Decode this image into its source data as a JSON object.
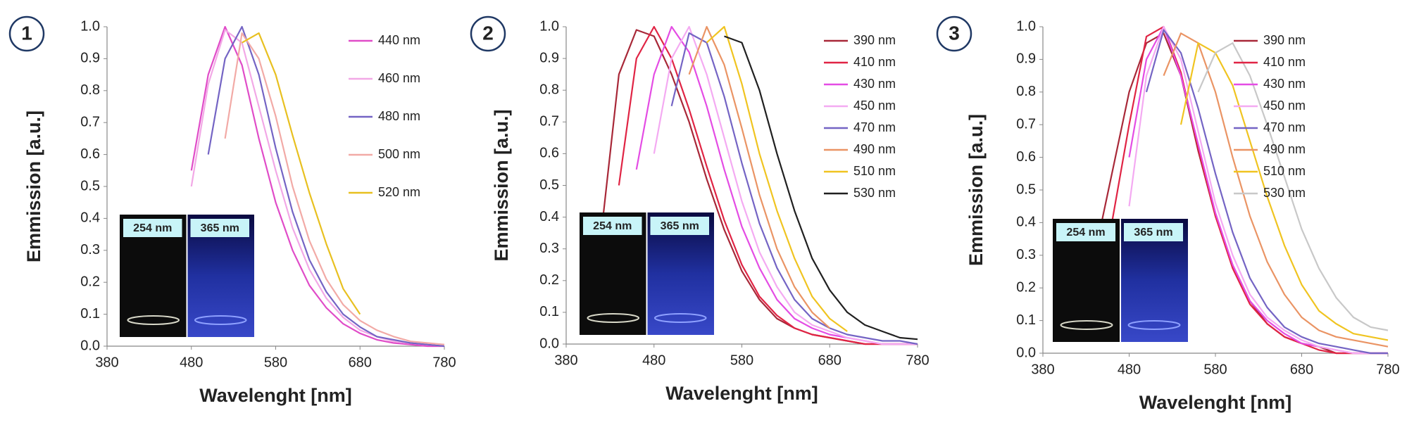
{
  "chart_data": [
    {
      "type": "line",
      "label": "1",
      "xlabel": "Wavelenght [nm]",
      "ylabel": "Emmission [a.u.]",
      "inset_labels": [
        "254 nm",
        "365 nm"
      ],
      "legend": "right",
      "grid": false,
      "xlim": [
        380,
        780
      ],
      "xticks": [
        380,
        480,
        580,
        680,
        780
      ],
      "ylim": [
        0,
        1
      ],
      "yticks": [
        {
          "value": 0,
          "label": "0.0"
        },
        0.1,
        0.2,
        0.3,
        0.4,
        0.5,
        0.6,
        0.7,
        0.8,
        0.9,
        {
          "value": 1,
          "label": "1.0"
        }
      ],
      "x": [
        380,
        400,
        420,
        440,
        460,
        480,
        500,
        520,
        540,
        560,
        580,
        600,
        620,
        640,
        660,
        680,
        700,
        720,
        740,
        760,
        780
      ],
      "series": [
        {
          "name": "440 nm",
          "color": "#e04cc8",
          "values": [
            null,
            null,
            null,
            null,
            null,
            0.55,
            0.85,
            1.0,
            0.88,
            0.65,
            0.45,
            0.3,
            0.19,
            0.12,
            0.07,
            0.04,
            0.02,
            0.01,
            0.005,
            0,
            0
          ]
        },
        {
          "name": "460 nm",
          "color": "#f2a8e6",
          "values": [
            null,
            null,
            null,
            null,
            null,
            0.5,
            0.82,
            0.99,
            0.95,
            0.75,
            0.55,
            0.37,
            0.24,
            0.15,
            0.09,
            0.05,
            0.03,
            0.015,
            0.01,
            0.005,
            0
          ]
        },
        {
          "name": "480 nm",
          "color": "#7464c4",
          "values": [
            null,
            null,
            null,
            null,
            null,
            null,
            0.6,
            0.9,
            1.0,
            0.85,
            0.62,
            0.42,
            0.27,
            0.17,
            0.1,
            0.06,
            0.03,
            0.02,
            0.01,
            0.005,
            0
          ]
        },
        {
          "name": "500 nm",
          "color": "#f2aaa6",
          "values": [
            null,
            null,
            null,
            null,
            null,
            null,
            null,
            0.65,
            0.98,
            0.9,
            0.72,
            0.5,
            0.33,
            0.21,
            0.13,
            0.08,
            0.05,
            0.03,
            0.015,
            0.01,
            0.005
          ]
        },
        {
          "name": "520 nm",
          "color": "#e8c020",
          "values": [
            null,
            null,
            null,
            null,
            null,
            null,
            null,
            null,
            0.95,
            0.98,
            0.85,
            0.66,
            0.48,
            0.32,
            0.18,
            0.1,
            null,
            null,
            null,
            null,
            null
          ]
        }
      ]
    },
    {
      "type": "line",
      "label": "2",
      "xlabel": "Wavelenght [nm]",
      "ylabel": "Emmission [a.u.]",
      "inset_labels": [
        "254 nm",
        "365 nm"
      ],
      "legend": "right",
      "grid": false,
      "xlim": [
        380,
        780
      ],
      "xticks": [
        380,
        480,
        580,
        680,
        780
      ],
      "ylim": [
        0,
        1
      ],
      "yticks": [
        {
          "value": 0,
          "label": "0.0"
        },
        0.1,
        0.2,
        0.3,
        0.4,
        0.5,
        0.6,
        0.7,
        0.8,
        0.9,
        {
          "value": 1,
          "label": "1.0"
        }
      ],
      "x": [
        380,
        400,
        420,
        440,
        460,
        480,
        500,
        520,
        540,
        560,
        580,
        600,
        620,
        640,
        660,
        680,
        700,
        720,
        740,
        760,
        780
      ],
      "series": [
        {
          "name": "390 nm",
          "color": "#a82838",
          "values": [
            null,
            null,
            0.35,
            0.85,
            0.99,
            0.97,
            0.85,
            0.7,
            0.52,
            0.36,
            0.23,
            0.14,
            0.08,
            0.05,
            0.03,
            0.02,
            0.01,
            0,
            0,
            0,
            0
          ]
        },
        {
          "name": "410 nm",
          "color": "#e02444",
          "values": [
            null,
            null,
            null,
            0.5,
            0.9,
            1.0,
            0.9,
            0.74,
            0.56,
            0.39,
            0.25,
            0.15,
            0.09,
            0.05,
            0.03,
            0.02,
            0.01,
            0,
            0,
            0,
            0
          ]
        },
        {
          "name": "430 nm",
          "color": "#e44ce4",
          "values": [
            null,
            null,
            null,
            null,
            0.55,
            0.85,
            1.0,
            0.92,
            0.75,
            0.55,
            0.37,
            0.24,
            0.14,
            0.08,
            0.05,
            0.03,
            0.02,
            0.01,
            0,
            0,
            0
          ]
        },
        {
          "name": "450 nm",
          "color": "#f4aaf2",
          "values": [
            null,
            null,
            null,
            null,
            null,
            0.6,
            0.9,
            1.0,
            0.85,
            0.65,
            0.45,
            0.29,
            0.18,
            0.1,
            0.06,
            0.04,
            0.02,
            0.01,
            0,
            0,
            0
          ]
        },
        {
          "name": "470 nm",
          "color": "#7464c4",
          "values": [
            null,
            null,
            null,
            null,
            null,
            null,
            0.75,
            0.98,
            0.95,
            0.78,
            0.57,
            0.38,
            0.24,
            0.14,
            0.08,
            0.05,
            0.03,
            0.02,
            0.01,
            0.01,
            0
          ]
        },
        {
          "name": "490 nm",
          "color": "#ea9464",
          "values": [
            null,
            null,
            null,
            null,
            null,
            null,
            null,
            0.85,
            1.0,
            0.88,
            0.68,
            0.47,
            0.3,
            0.18,
            0.1,
            0.05,
            null,
            null,
            null,
            null,
            null
          ]
        },
        {
          "name": "510 nm",
          "color": "#f0c420",
          "values": [
            null,
            null,
            null,
            null,
            null,
            null,
            null,
            null,
            0.95,
            1.0,
            0.82,
            0.6,
            0.42,
            0.27,
            0.15,
            0.08,
            0.04,
            null,
            null,
            null,
            null
          ]
        },
        {
          "name": "530 nm",
          "color": "#202020",
          "values": [
            null,
            null,
            null,
            null,
            null,
            null,
            null,
            null,
            null,
            0.97,
            0.95,
            0.8,
            0.6,
            0.42,
            0.27,
            0.17,
            0.1,
            0.06,
            0.04,
            0.02,
            0.015
          ]
        }
      ]
    },
    {
      "type": "line",
      "label": "3",
      "xlabel": "Wavelenght [nm]",
      "ylabel": "Emmission [a.u.]",
      "inset_labels": [
        "254 nm",
        "365 nm"
      ],
      "legend": "right",
      "grid": false,
      "xlim": [
        380,
        780
      ],
      "xticks": [
        380,
        480,
        580,
        680,
        780
      ],
      "ylim": [
        0,
        1
      ],
      "yticks": [
        {
          "value": 0,
          "label": "0.0"
        },
        0.1,
        0.2,
        0.3,
        0.4,
        0.5,
        0.6,
        0.7,
        0.8,
        0.9,
        {
          "value": 1,
          "label": "1.0"
        }
      ],
      "x": [
        380,
        400,
        420,
        440,
        460,
        480,
        500,
        520,
        540,
        560,
        580,
        600,
        620,
        640,
        660,
        680,
        700,
        720,
        740,
        760,
        780
      ],
      "series": [
        {
          "name": "390 nm",
          "color": "#a82838",
          "values": [
            null,
            null,
            null,
            0.3,
            0.55,
            0.8,
            0.95,
            0.98,
            0.85,
            0.62,
            0.42,
            0.27,
            0.16,
            0.09,
            0.05,
            0.03,
            0.02,
            0,
            0,
            0,
            0
          ]
        },
        {
          "name": "410 nm",
          "color": "#e02444",
          "values": [
            null,
            null,
            null,
            null,
            0.4,
            0.7,
            0.97,
            1.0,
            0.86,
            0.63,
            0.42,
            0.26,
            0.15,
            0.09,
            0.05,
            0.03,
            0.01,
            0,
            0,
            0,
            0
          ]
        },
        {
          "name": "430 nm",
          "color": "#e44ce4",
          "values": [
            null,
            null,
            null,
            null,
            null,
            0.6,
            0.9,
            1.0,
            0.85,
            0.64,
            0.43,
            0.27,
            0.16,
            0.1,
            0.06,
            0.03,
            0.02,
            0.01,
            0,
            0,
            0
          ]
        },
        {
          "name": "450 nm",
          "color": "#f4aaf2",
          "values": [
            null,
            null,
            null,
            null,
            null,
            0.45,
            0.85,
            1.0,
            0.9,
            0.68,
            0.46,
            0.3,
            0.18,
            0.11,
            0.07,
            0.04,
            0.02,
            0.01,
            0,
            0,
            0
          ]
        },
        {
          "name": "470 nm",
          "color": "#7464c4",
          "values": [
            null,
            null,
            null,
            null,
            null,
            null,
            0.8,
            0.99,
            0.92,
            0.75,
            0.55,
            0.37,
            0.23,
            0.14,
            0.08,
            0.05,
            0.03,
            0.02,
            0.01,
            0,
            0
          ]
        },
        {
          "name": "490 nm",
          "color": "#ea9464",
          "values": [
            null,
            null,
            null,
            null,
            null,
            null,
            null,
            0.85,
            0.98,
            0.95,
            0.8,
            0.6,
            0.42,
            0.28,
            0.18,
            0.11,
            0.07,
            0.05,
            0.04,
            0.03,
            0.02
          ]
        },
        {
          "name": "510 nm",
          "color": "#f0c420",
          "values": [
            null,
            null,
            null,
            null,
            null,
            null,
            null,
            null,
            0.7,
            0.95,
            0.92,
            0.82,
            0.65,
            0.48,
            0.33,
            0.21,
            0.13,
            0.09,
            0.06,
            0.05,
            0.04
          ]
        },
        {
          "name": "530 nm",
          "color": "#c8c8c8",
          "values": [
            null,
            null,
            null,
            null,
            null,
            null,
            null,
            null,
            null,
            0.8,
            0.92,
            0.95,
            0.85,
            0.7,
            0.54,
            0.38,
            0.26,
            0.17,
            0.11,
            0.08,
            0.07
          ]
        }
      ]
    }
  ]
}
